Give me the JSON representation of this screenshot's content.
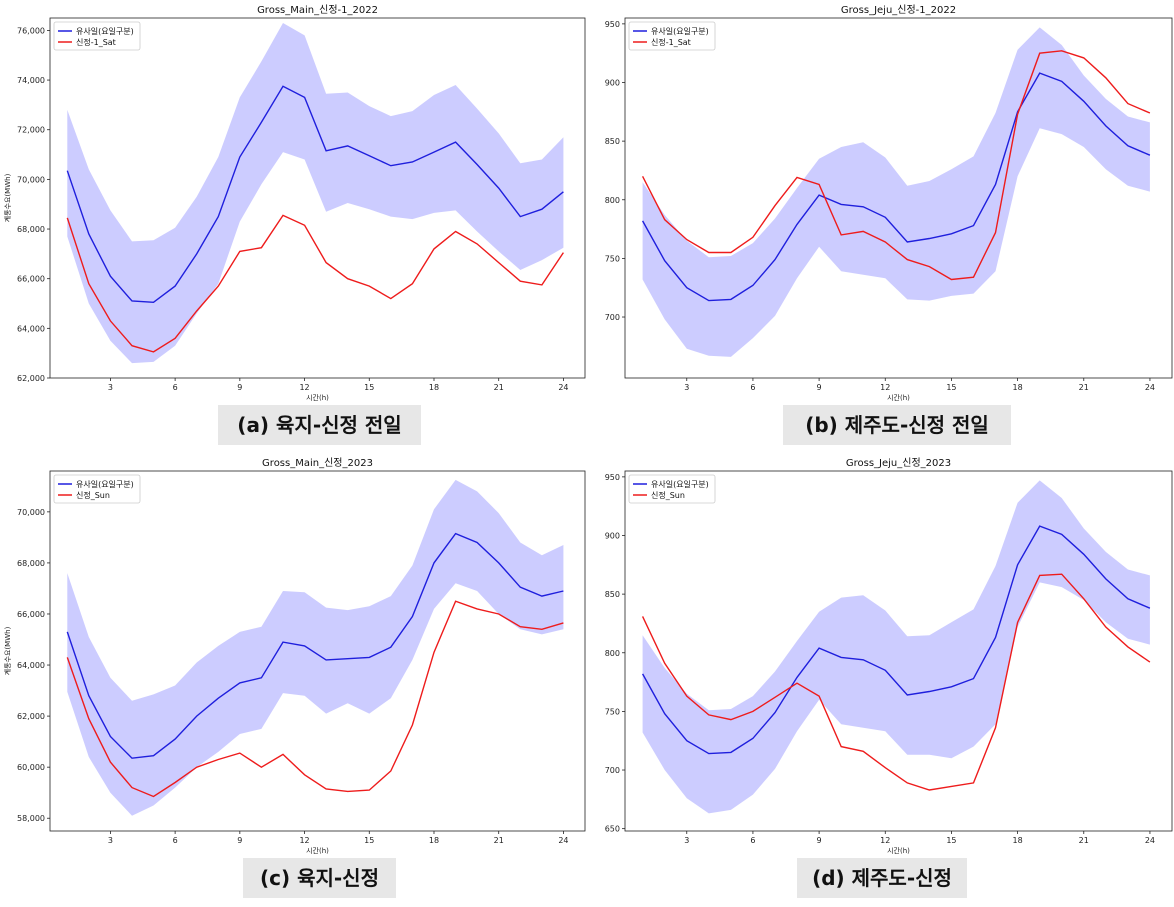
{
  "colors": {
    "mean_line": "#1f1fdd",
    "band_fill": "#aaaaff",
    "target_line": "#ee1c1c",
    "caption_bg": "#e7e7e7"
  },
  "chart_data": [
    {
      "type": "line",
      "title": "Gross_Main_신정-1_2022",
      "caption": "(a) 육지-신정 전일",
      "xlabel": "시간(h)",
      "ylabel": "계통수요(MWh)",
      "x": [
        1,
        2,
        3,
        4,
        5,
        6,
        7,
        8,
        9,
        10,
        11,
        12,
        13,
        14,
        15,
        16,
        17,
        18,
        19,
        20,
        21,
        22,
        23,
        24
      ],
      "xticks": [
        3,
        6,
        9,
        12,
        15,
        18,
        21,
        24
      ],
      "ylim": [
        62000,
        76500
      ],
      "yticks": [
        62000,
        64000,
        66000,
        68000,
        70000,
        72000,
        74000,
        76000
      ],
      "ytick_labels": [
        "62,000",
        "64,000",
        "66,000",
        "68,000",
        "70,000",
        "72,000",
        "74,000",
        "76,000"
      ],
      "legend_position": "top-left",
      "series": [
        {
          "name": "유사일(요일구분)",
          "color": "#1f1fdd",
          "values": [
            70350,
            67800,
            66100,
            65100,
            65050,
            65700,
            67000,
            68500,
            70900,
            72300,
            73750,
            73300,
            71150,
            71350,
            70950,
            70550,
            70700,
            71100,
            71500,
            70600,
            69650,
            68500,
            68800,
            69500
          ]
        },
        {
          "name": "신정-1_Sat",
          "color": "#ee1c1c",
          "values": [
            68450,
            65800,
            64300,
            63300,
            63050,
            63600,
            64700,
            65700,
            67100,
            67250,
            68550,
            68150,
            66650,
            66000,
            65700,
            65200,
            65800,
            67200,
            67900,
            67400,
            66650,
            65900,
            65750,
            67050
          ]
        }
      ],
      "band": {
        "color": "#aaaaff",
        "upper": [
          72800,
          70400,
          68750,
          67500,
          67550,
          68050,
          69300,
          70900,
          73300,
          74750,
          76300,
          75800,
          73450,
          73500,
          72950,
          72550,
          72750,
          73400,
          73800,
          72850,
          71850,
          70650,
          70800,
          71700
        ],
        "lower": [
          67700,
          65000,
          63500,
          62600,
          62650,
          63300,
          64600,
          65800,
          68300,
          69800,
          71100,
          70800,
          68700,
          69050,
          68800,
          68500,
          68400,
          68650,
          68750,
          67900,
          67100,
          66350,
          66750,
          67250
        ]
      }
    },
    {
      "type": "line",
      "title": "Gross_Jeju_신정-1_2022",
      "caption": "(b) 제주도-신정 전일",
      "xlabel": "시간(h)",
      "ylabel": "",
      "x": [
        1,
        2,
        3,
        4,
        5,
        6,
        7,
        8,
        9,
        10,
        11,
        12,
        13,
        14,
        15,
        16,
        17,
        18,
        19,
        20,
        21,
        22,
        23,
        24
      ],
      "xticks": [
        3,
        6,
        9,
        12,
        15,
        18,
        21,
        24
      ],
      "ylim": [
        648,
        955
      ],
      "yticks": [
        700,
        750,
        800,
        850,
        900,
        950
      ],
      "ytick_labels": [
        "700",
        "750",
        "800",
        "850",
        "900",
        "950"
      ],
      "legend_position": "top-left",
      "series": [
        {
          "name": "유사일(요일구분)",
          "color": "#1f1fdd",
          "values": [
            782,
            748,
            725,
            714,
            715,
            727,
            749,
            779,
            804,
            796,
            794,
            785,
            764,
            767,
            771,
            778,
            813,
            875,
            908,
            901,
            884,
            863,
            846,
            838
          ]
        },
        {
          "name": "신정-1_Sat",
          "color": "#ee1c1c",
          "values": [
            820,
            783,
            766,
            755,
            755,
            768,
            795,
            819,
            813,
            770,
            773,
            764,
            749,
            743,
            732,
            734,
            772,
            873,
            925,
            927,
            921,
            904,
            882,
            874
          ]
        }
      ],
      "band": {
        "color": "#aaaaff",
        "upper": [
          815,
          787,
          765,
          751,
          752,
          763,
          784,
          810,
          835,
          845,
          849,
          836,
          812,
          816,
          826,
          837,
          874,
          928,
          947,
          932,
          906,
          886,
          871,
          866
        ],
        "lower": [
          732,
          698,
          673,
          667,
          666,
          682,
          701,
          733,
          760,
          739,
          736,
          733,
          715,
          714,
          718,
          720,
          739,
          820,
          861,
          856,
          845,
          826,
          812,
          807
        ]
      }
    },
    {
      "type": "line",
      "title": "Gross_Main_신정_2023",
      "caption": "(c) 육지-신정",
      "xlabel": "시간(h)",
      "ylabel": "계통수요(MWh)",
      "x": [
        1,
        2,
        3,
        4,
        5,
        6,
        7,
        8,
        9,
        10,
        11,
        12,
        13,
        14,
        15,
        16,
        17,
        18,
        19,
        20,
        21,
        22,
        23,
        24
      ],
      "xticks": [
        3,
        6,
        9,
        12,
        15,
        18,
        21,
        24
      ],
      "ylim": [
        57500,
        71600
      ],
      "yticks": [
        58000,
        60000,
        62000,
        64000,
        66000,
        68000,
        70000
      ],
      "ytick_labels": [
        "58,000",
        "60,000",
        "62,000",
        "64,000",
        "66,000",
        "68,000",
        "70,000"
      ],
      "legend_position": "top-left",
      "series": [
        {
          "name": "유사일(요일구분)",
          "color": "#1f1fdd",
          "values": [
            65300,
            62800,
            61200,
            60350,
            60450,
            61100,
            62000,
            62700,
            63300,
            63500,
            64900,
            64750,
            64200,
            64250,
            64300,
            64700,
            65900,
            68000,
            69150,
            68800,
            68000,
            67050,
            66700,
            66900
          ]
        },
        {
          "name": "신정_Sun",
          "color": "#ee1c1c",
          "values": [
            64300,
            61900,
            60200,
            59200,
            58850,
            59400,
            60000,
            60300,
            60550,
            60000,
            60500,
            59700,
            59150,
            59050,
            59100,
            59850,
            61650,
            64500,
            66500,
            66200,
            66000,
            65500,
            65400,
            65650
          ]
        }
      ],
      "band": {
        "color": "#aaaaff",
        "upper": [
          67600,
          65100,
          63500,
          62600,
          62850,
          63200,
          64100,
          64750,
          65300,
          65500,
          66900,
          66850,
          66250,
          66150,
          66300,
          66700,
          67900,
          70100,
          71250,
          70800,
          69950,
          68800,
          68300,
          68700
        ]
      },
      "band_lower_note": "",
      "band_lower": [
        62950,
        60400,
        59000,
        58100,
        58500,
        59200,
        60000,
        60600,
        61300,
        61500,
        62900,
        62800,
        62100,
        62500,
        62100,
        62700,
        64200,
        66200,
        67200,
        66900,
        66000,
        65400,
        65200,
        65400
      ]
    },
    {
      "type": "line",
      "title": "Gross_Jeju_신정_2023",
      "caption": "(d) 제주도-신정",
      "xlabel": "시간(h)",
      "ylabel": "",
      "x": [
        1,
        2,
        3,
        4,
        5,
        6,
        7,
        8,
        9,
        10,
        11,
        12,
        13,
        14,
        15,
        16,
        17,
        18,
        19,
        20,
        21,
        22,
        23,
        24
      ],
      "xticks": [
        3,
        6,
        9,
        12,
        15,
        18,
        21,
        24
      ],
      "ylim": [
        648,
        955
      ],
      "yticks": [
        650,
        700,
        750,
        800,
        850,
        900,
        950
      ],
      "ytick_labels": [
        "650",
        "700",
        "750",
        "800",
        "850",
        "900",
        "950"
      ],
      "legend_position": "top-left",
      "series": [
        {
          "name": "유사일(요일구분)",
          "color": "#1f1fdd",
          "values": [
            782,
            748,
            725,
            714,
            715,
            727,
            749,
            779,
            804,
            796,
            794,
            785,
            764,
            767,
            771,
            778,
            813,
            875,
            908,
            901,
            884,
            863,
            846,
            838
          ]
        },
        {
          "name": "신정_Sun",
          "color": "#ee1c1c",
          "values": [
            831,
            791,
            763,
            747,
            743,
            750,
            762,
            774,
            763,
            720,
            716,
            702,
            689,
            683,
            686,
            689,
            736,
            826,
            866,
            867,
            846,
            822,
            805,
            792
          ]
        }
      ],
      "band": {
        "color": "#aaaaff",
        "upper": [
          815,
          787,
          765,
          751,
          752,
          763,
          784,
          810,
          835,
          847,
          849,
          836,
          814,
          815,
          826,
          837,
          874,
          928,
          947,
          932,
          906,
          886,
          871,
          866
        ],
        "lower": [
          732,
          700,
          676,
          663,
          666,
          679,
          701,
          733,
          760,
          739,
          736,
          733,
          713,
          713,
          710,
          720,
          739,
          822,
          860,
          856,
          845,
          826,
          812,
          807
        ]
      }
    }
  ]
}
